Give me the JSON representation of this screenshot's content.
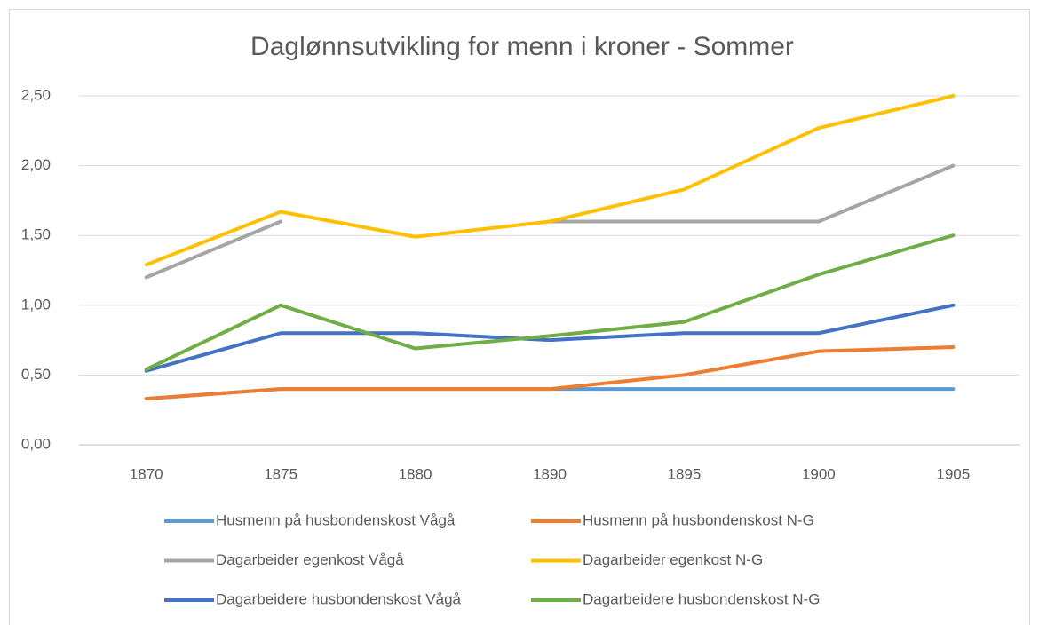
{
  "chart_data": {
    "type": "line",
    "title": "Daglønnsutvikling for menn i kroner - Sommer",
    "categories": [
      "1870",
      "1875",
      "1880",
      "1890",
      "1895",
      "1900",
      "1905"
    ],
    "series": [
      {
        "name": "Husmenn på husbondenskost Vågå",
        "color": "#5b9bd5",
        "values": [
          0.33,
          0.4,
          0.4,
          0.4,
          0.4,
          0.4,
          0.4
        ]
      },
      {
        "name": "Husmenn på husbondenskost N-G",
        "color": "#ed7d31",
        "values": [
          0.33,
          0.4,
          0.4,
          0.4,
          0.5,
          0.67,
          0.7
        ]
      },
      {
        "name": "Dagarbeider egenkost Vågå",
        "color": "#a5a5a5",
        "values": [
          1.2,
          1.6,
          null,
          1.6,
          1.6,
          1.6,
          2.0
        ]
      },
      {
        "name": "Dagarbeider egenkost N-G",
        "color": "#ffc000",
        "values": [
          1.29,
          1.67,
          1.49,
          1.6,
          1.83,
          2.27,
          2.5
        ]
      },
      {
        "name": "Dagarbeidere husbondenskost Vågå",
        "color": "#4472c4",
        "values": [
          0.53,
          0.8,
          0.8,
          0.75,
          0.8,
          0.8,
          1.0
        ]
      },
      {
        "name": "Dagarbeidere husbondenskost N-G",
        "color": "#70ad47",
        "values": [
          0.54,
          1.0,
          0.69,
          0.78,
          0.88,
          1.22,
          1.5
        ]
      }
    ],
    "ylim": [
      0,
      2.5
    ],
    "yticks": [
      {
        "value": 0,
        "label": "0,00"
      },
      {
        "value": 0.5,
        "label": "0,50"
      },
      {
        "value": 1,
        "label": "1,00"
      },
      {
        "value": 1.5,
        "label": "1,50"
      },
      {
        "value": 2,
        "label": "2,00"
      },
      {
        "value": 2.5,
        "label": "2,50"
      }
    ],
    "grid": true,
    "legend": "bottom"
  }
}
